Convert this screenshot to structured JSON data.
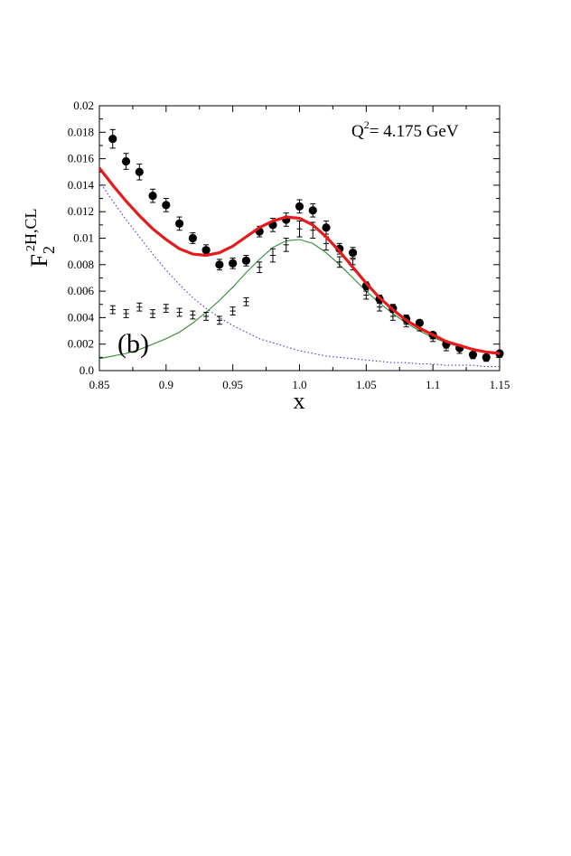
{
  "chart_data": {
    "type": "scatter",
    "xlabel": "x",
    "ylabel_main": "F",
    "ylabel_sub": "2",
    "ylabel_sup": "2",
    "ylabel_rest": "H,CL",
    "annotation_q": "Q",
    "annotation_q_sup": "2",
    "annotation_value": "= 4.175 GeV",
    "panel_label": "(b)",
    "xlim": [
      0.85,
      1.15
    ],
    "ylim": [
      0.0,
      0.02
    ],
    "x_ticks": [
      {
        "v": 0.85,
        "label": "0.85"
      },
      {
        "v": 0.9,
        "label": "0.9"
      },
      {
        "v": 0.95,
        "label": "0.95"
      },
      {
        "v": 1.0,
        "label": "1.0"
      },
      {
        "v": 1.05,
        "label": "1.05"
      },
      {
        "v": 1.1,
        "label": "1.1"
      },
      {
        "v": 1.15,
        "label": "1.15"
      }
    ],
    "y_ticks": [
      {
        "v": 0.0,
        "label": "0.0"
      },
      {
        "v": 0.002,
        "label": "0.002"
      },
      {
        "v": 0.004,
        "label": "0.004"
      },
      {
        "v": 0.006,
        "label": "0.006"
      },
      {
        "v": 0.008,
        "label": "0.008"
      },
      {
        "v": 0.01,
        "label": "0.01"
      },
      {
        "v": 0.012,
        "label": "0.012"
      },
      {
        "v": 0.014,
        "label": "0.014"
      },
      {
        "v": 0.016,
        "label": "0.016"
      },
      {
        "v": 0.018,
        "label": "0.018"
      },
      {
        "v": 0.02,
        "label": "0.02"
      }
    ],
    "series": [
      {
        "kind": "points",
        "marker": "filled-circle",
        "color": "#000000",
        "x": [
          0.86,
          0.87,
          0.88,
          0.89,
          0.9,
          0.91,
          0.92,
          0.93,
          0.94,
          0.95,
          0.96,
          0.97,
          0.98,
          0.99,
          1.0,
          1.01,
          1.02,
          1.03,
          1.04,
          1.05,
          1.06,
          1.07,
          1.08,
          1.09,
          1.1,
          1.11,
          1.12,
          1.13,
          1.14,
          1.15
        ],
        "y": [
          0.0175,
          0.0158,
          0.015,
          0.0132,
          0.0125,
          0.0111,
          0.01,
          0.0091,
          0.008,
          0.0081,
          0.0083,
          0.0105,
          0.011,
          0.0114,
          0.0124,
          0.0121,
          0.0108,
          0.0092,
          0.0089,
          0.0064,
          0.0054,
          0.0047,
          0.0039,
          0.0036,
          0.0027,
          0.002,
          0.0017,
          0.0012,
          0.001,
          0.0013
        ],
        "err": [
          0.0007,
          0.0006,
          0.0006,
          0.0005,
          0.0005,
          0.0005,
          0.0004,
          0.0004,
          0.0004,
          0.0004,
          0.0004,
          0.0004,
          0.0005,
          0.0005,
          0.0005,
          0.0005,
          0.0005,
          0.0004,
          0.0004,
          0.0003,
          0.0003,
          0.0003,
          0.0003,
          0.0002,
          0.0002,
          0.0002,
          0.0002,
          0.0002,
          0.0002,
          0.0002
        ]
      },
      {
        "kind": "points",
        "marker": "cross-errorbar",
        "color": "#000000",
        "x": [
          0.86,
          0.87,
          0.88,
          0.89,
          0.9,
          0.91,
          0.92,
          0.93,
          0.94,
          0.95,
          0.96,
          0.97,
          0.98,
          0.99,
          1.0,
          1.01,
          1.02,
          1.03,
          1.04,
          1.05,
          1.06,
          1.07,
          1.08,
          1.09,
          1.1,
          1.11,
          1.12,
          1.13,
          1.14,
          1.15
        ],
        "y": [
          0.0046,
          0.0043,
          0.0048,
          0.0043,
          0.0047,
          0.0044,
          0.0042,
          0.0041,
          0.0038,
          0.0045,
          0.0052,
          0.0078,
          0.0087,
          0.0095,
          0.0107,
          0.0106,
          0.0096,
          0.0082,
          0.008,
          0.0057,
          0.0048,
          0.0041,
          0.0035,
          0.0032,
          0.0024,
          0.0017,
          0.0015,
          0.0011,
          0.0009,
          0.0012
        ],
        "err": [
          0.0003,
          0.0003,
          0.0003,
          0.0003,
          0.0003,
          0.0003,
          0.0003,
          0.0003,
          0.0003,
          0.0003,
          0.0003,
          0.0004,
          0.0005,
          0.0005,
          0.0006,
          0.0006,
          0.0005,
          0.0004,
          0.0004,
          0.0003,
          0.0003,
          0.0003,
          0.0002,
          0.0002,
          0.0002,
          0.0002,
          0.0002,
          0.0002,
          0.0002,
          0.0002
        ]
      },
      {
        "kind": "line",
        "style": "thick-solid",
        "color": "#e41a1c",
        "x": [
          0.85,
          0.86,
          0.87,
          0.88,
          0.89,
          0.9,
          0.91,
          0.92,
          0.93,
          0.94,
          0.95,
          0.96,
          0.97,
          0.98,
          0.99,
          1.0,
          1.01,
          1.02,
          1.03,
          1.04,
          1.05,
          1.06,
          1.07,
          1.08,
          1.09,
          1.1,
          1.11,
          1.12,
          1.13,
          1.14,
          1.15
        ],
        "y": [
          0.0153,
          0.014,
          0.0128,
          0.0117,
          0.0107,
          0.0099,
          0.0092,
          0.0088,
          0.0087,
          0.0089,
          0.0094,
          0.0101,
          0.0108,
          0.0113,
          0.0116,
          0.0115,
          0.011,
          0.0101,
          0.009,
          0.0078,
          0.0066,
          0.0055,
          0.0046,
          0.0038,
          0.0032,
          0.0027,
          0.0022,
          0.0019,
          0.0016,
          0.0014,
          0.0013
        ]
      },
      {
        "kind": "line",
        "style": "thin-solid",
        "color": "#2e8b2e",
        "x": [
          0.85,
          0.86,
          0.87,
          0.88,
          0.89,
          0.9,
          0.91,
          0.92,
          0.93,
          0.94,
          0.95,
          0.96,
          0.97,
          0.98,
          0.99,
          1.0,
          1.01,
          1.02,
          1.03,
          1.04,
          1.05,
          1.06,
          1.07,
          1.08,
          1.09,
          1.1,
          1.11,
          1.12,
          1.13,
          1.14,
          1.15
        ],
        "y": [
          0.0009,
          0.0011,
          0.0013,
          0.0016,
          0.002,
          0.0024,
          0.0029,
          0.0036,
          0.0044,
          0.0053,
          0.0063,
          0.0074,
          0.0084,
          0.0093,
          0.0098,
          0.0099,
          0.0096,
          0.0089,
          0.008,
          0.007,
          0.006,
          0.0051,
          0.0043,
          0.0036,
          0.003,
          0.0025,
          0.0021,
          0.0018,
          0.0016,
          0.0014,
          0.0012
        ]
      },
      {
        "kind": "line",
        "style": "dotted",
        "color": "#3a3acd",
        "x": [
          0.85,
          0.86,
          0.87,
          0.88,
          0.89,
          0.9,
          0.91,
          0.92,
          0.93,
          0.94,
          0.95,
          0.96,
          0.97,
          0.98,
          0.99,
          1.0,
          1.01,
          1.02,
          1.03,
          1.04,
          1.05,
          1.06,
          1.07,
          1.08,
          1.09,
          1.1,
          1.11,
          1.12,
          1.13,
          1.14,
          1.15
        ],
        "y": [
          0.0143,
          0.0128,
          0.0114,
          0.0101,
          0.0088,
          0.0076,
          0.0065,
          0.0055,
          0.0047,
          0.004,
          0.0034,
          0.0029,
          0.0024,
          0.0021,
          0.0018,
          0.0015,
          0.0013,
          0.0011,
          0.001,
          0.0009,
          0.0008,
          0.0007,
          0.0006,
          0.0006,
          0.0005,
          0.0005,
          0.0004,
          0.0004,
          0.0004,
          0.0003,
          0.0003
        ]
      }
    ]
  }
}
